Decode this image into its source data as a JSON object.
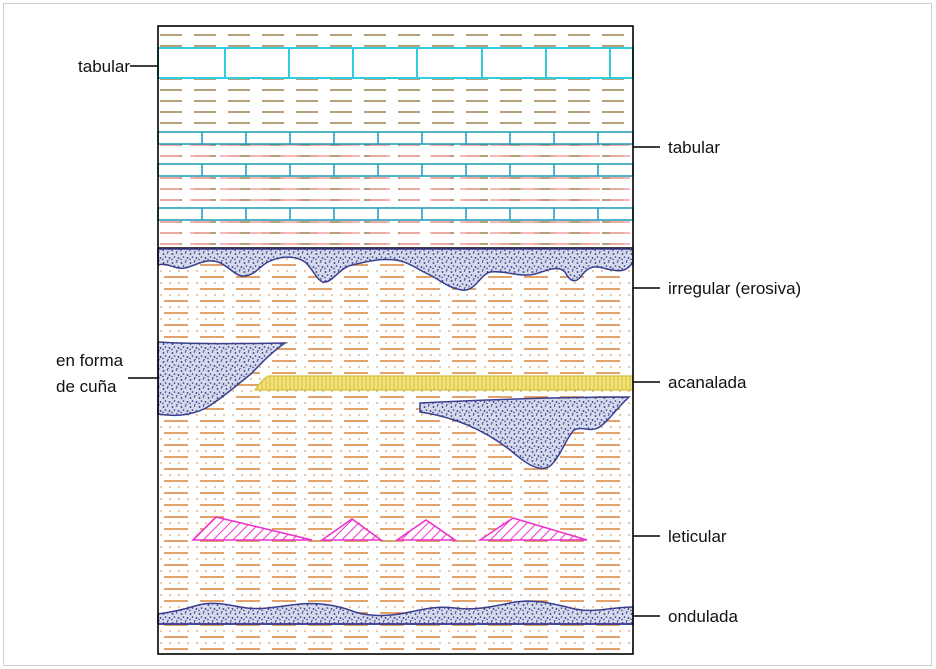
{
  "labels": {
    "tabular_left": "tabular",
    "tabular_right": "tabular",
    "irregular": "irregular (erosiva)",
    "wedge_line1": "en forma",
    "wedge_line2": "de cuña",
    "channel": "acanalada",
    "lenticular": "leticular",
    "wavy": "ondulada"
  },
  "colors": {
    "border": "#000000",
    "limestone": "#33ccdd",
    "limestone_dark": "#2a9fb8",
    "top_dash": "#8a6a2a",
    "pink_dash": "#f08c8c",
    "orange_dash": "#d9833a",
    "sand_outline": "#3a3f8f",
    "sand_fill": "#d4d9ec",
    "channel_fill": "#f3e27a",
    "channel_stroke": "#d6bf3f",
    "lens": "#ee33cc"
  }
}
